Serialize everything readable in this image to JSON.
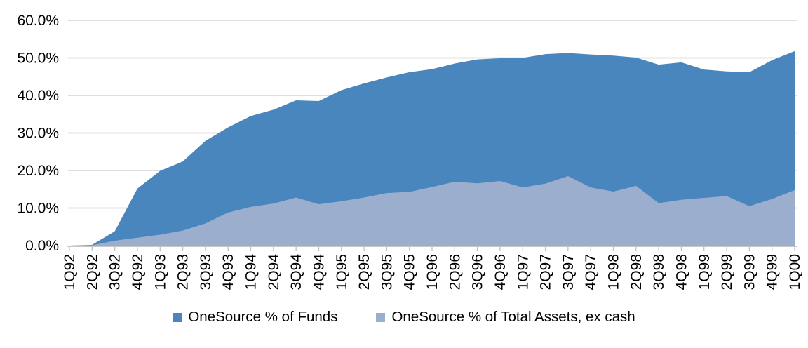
{
  "chart_data": {
    "type": "area",
    "title": "",
    "xlabel": "",
    "ylabel": "",
    "categories": [
      "1Q92",
      "2Q92",
      "3Q92",
      "4Q92",
      "1Q93",
      "2Q93",
      "3Q93",
      "4Q93",
      "1Q94",
      "2Q94",
      "3Q94",
      "4Q94",
      "1Q95",
      "2Q95",
      "3Q95",
      "4Q95",
      "1Q96",
      "2Q96",
      "3Q96",
      "4Q96",
      "1Q97",
      "2Q97",
      "3Q97",
      "4Q97",
      "1Q98",
      "2Q98",
      "3Q98",
      "4Q98",
      "1Q99",
      "2Q99",
      "3Q99",
      "4Q99",
      "1Q00"
    ],
    "series": [
      {
        "name": "OneSource % of Funds",
        "color": "#4A86BE",
        "values": [
          0,
          0.2,
          3.8,
          15.2,
          19.9,
          22.4,
          27.9,
          31.5,
          34.5,
          36.2,
          38.7,
          38.5,
          41.4,
          43.2,
          44.8,
          46.2,
          47.0,
          48.5,
          49.6,
          49.9,
          50.0,
          51.0,
          51.3,
          50.9,
          50.6,
          50.1,
          48.2,
          48.8,
          46.9,
          46.4,
          46.2,
          49.4,
          51.8
        ]
      },
      {
        "name": "OneSource % of Total Assets, ex cash",
        "color": "#9BAECD",
        "values": [
          0,
          0.1,
          1.3,
          2.1,
          2.9,
          4.0,
          5.9,
          8.8,
          10.3,
          11.2,
          12.8,
          11.0,
          11.8,
          12.8,
          14.0,
          14.3,
          15.6,
          17.0,
          16.6,
          17.2,
          15.5,
          16.5,
          18.5,
          15.5,
          14.4,
          15.9,
          11.3,
          12.2,
          12.7,
          13.2,
          10.5,
          12.4,
          14.8
        ]
      }
    ],
    "ylim": [
      0,
      60
    ],
    "y_ticks": [
      "0.0%",
      "10.0%",
      "20.0%",
      "30.0%",
      "40.0%",
      "50.0%",
      "60.0%"
    ],
    "grid": true,
    "legend_position": "bottom",
    "colors": {
      "gridline": "#D9D9D9",
      "axis": "#BFBFBF",
      "text": "#000000",
      "background": "#FFFFFF"
    }
  }
}
